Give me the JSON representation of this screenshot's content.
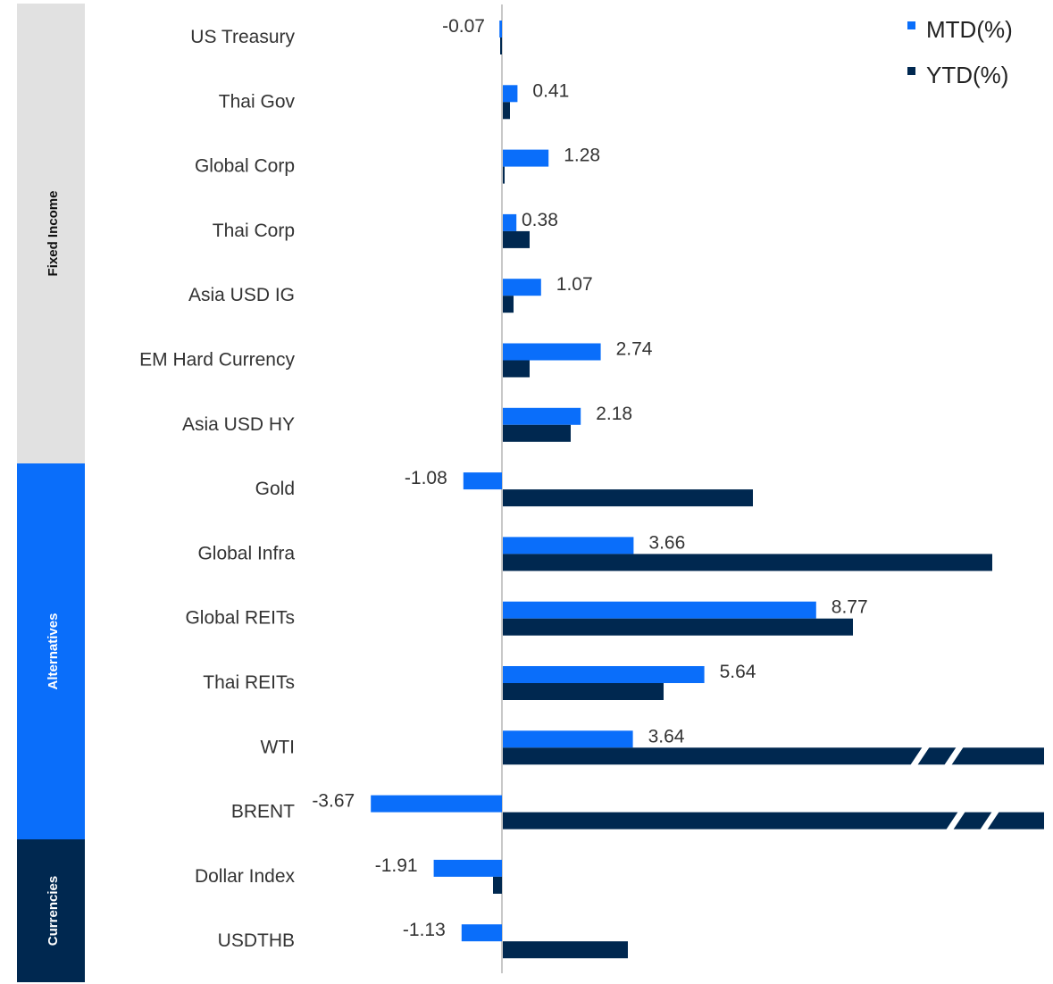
{
  "chart_data": {
    "type": "bar",
    "orientation": "horizontal",
    "categories": [
      "US Treasury",
      "Thai Gov",
      "Global Corp",
      "Thai Corp",
      "Asia USD IG",
      "EM Hard Currency",
      "Asia USD HY",
      "Gold",
      "Global Infra",
      "Global REITs",
      "Thai REITs",
      "WTI",
      "BRENT",
      "Dollar Index",
      "USDTHB"
    ],
    "groups": [
      {
        "name": "Fixed Income",
        "count": 7
      },
      {
        "name": "Alternatives",
        "count": 6
      },
      {
        "name": "Currencies",
        "count": 2
      }
    ],
    "series": [
      {
        "name": "MTD(%)",
        "color": "#0A6EFA",
        "values": [
          -0.07,
          0.41,
          1.28,
          0.38,
          1.07,
          2.74,
          2.18,
          -1.08,
          3.66,
          8.77,
          5.64,
          3.64,
          -3.67,
          -1.91,
          -1.13
        ],
        "labels": [
          "-0.07",
          "0.41",
          "1.28",
          "0.38",
          "1.07",
          "2.74",
          "2.18",
          "-1.08",
          "3.66",
          "8.77",
          "5.64",
          "3.64",
          "-3.67",
          "-1.91",
          "-1.13"
        ]
      },
      {
        "name": "YTD(%)",
        "color": "#002850",
        "values": [
          -0.05,
          0.2,
          0.0,
          0.75,
          0.3,
          0.75,
          1.9,
          7.0,
          13.7,
          9.8,
          4.5,
          16.0,
          16.0,
          -0.25,
          3.5
        ],
        "labels": [],
        "truncated": [
          false,
          false,
          false,
          false,
          false,
          false,
          false,
          false,
          false,
          false,
          false,
          true,
          true,
          false,
          false
        ]
      }
    ],
    "colors": {
      "fixed_income_band": "#E1E1E1",
      "alternatives_band": "#0A6EFA",
      "currencies_band": "#002850",
      "axis": "#C8C8C8"
    }
  }
}
